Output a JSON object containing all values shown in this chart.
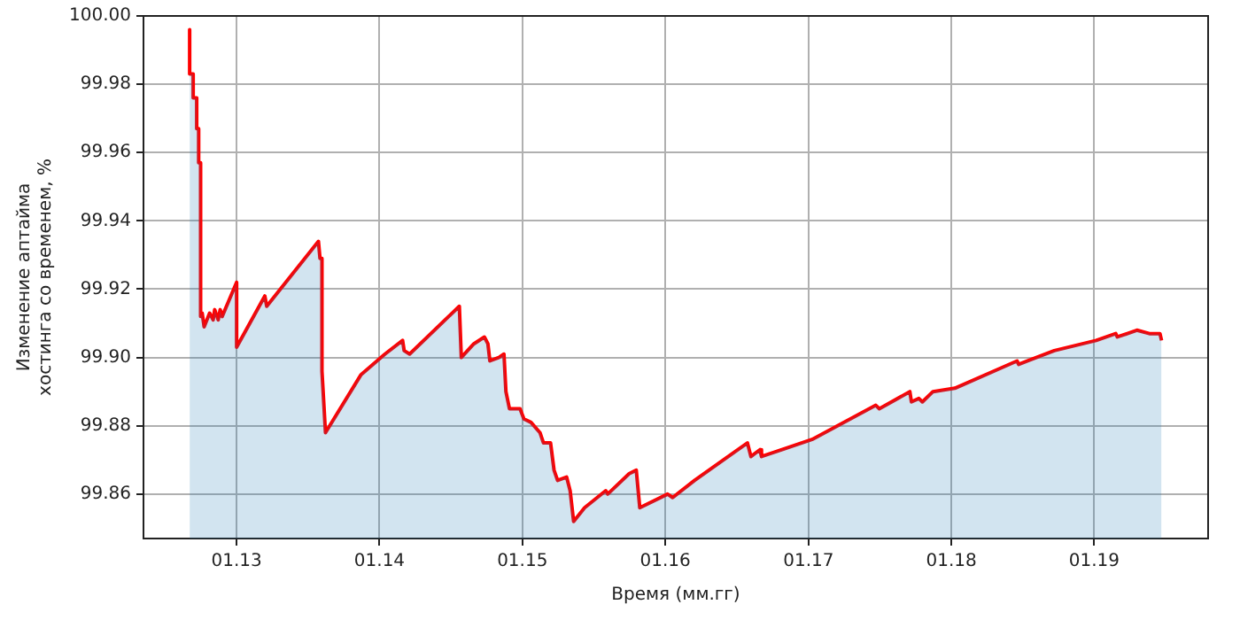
{
  "chart_data": {
    "type": "area",
    "xlabel": "Время (мм.гг)",
    "ylabel": "Изменение аптайма\nхостинга со временем, %",
    "x": [
      "2012-09-03",
      "2012-09-03",
      "2012-09-12",
      "2012-09-12",
      "2012-09-21",
      "2012-09-21",
      "2012-09-26",
      "2012-09-26",
      "2012-10-01",
      "2012-10-01",
      "2012-10-05",
      "2012-10-10",
      "2012-10-24",
      "2012-11-02",
      "2012-11-06",
      "2012-11-15",
      "2012-11-20",
      "2012-11-25",
      "2013-01-01",
      "2013-01-01",
      "2013-03-14",
      "2013-03-19",
      "2013-07-29",
      "2013-08-02",
      "2013-08-07",
      "2013-08-07",
      "2013-08-16",
      "2013-11-15",
      "2014-01-15",
      "2014-03-01",
      "2014-03-05",
      "2014-03-19",
      "2014-07-24",
      "2014-07-29",
      "2014-08-30",
      "2014-09-26",
      "2014-10-05",
      "2014-10-10",
      "2014-11-02",
      "2014-11-15",
      "2014-11-20",
      "2014-11-29",
      "2014-12-26",
      "2015-01-05",
      "2015-01-23",
      "2015-02-15",
      "2015-02-24",
      "2015-03-14",
      "2015-03-23",
      "2015-04-01",
      "2015-04-24",
      "2015-05-03",
      "2015-05-12",
      "2015-06-09",
      "2015-08-02",
      "2015-08-07",
      "2015-10-01",
      "2015-10-19",
      "2015-10-28",
      "2016-01-07",
      "2016-01-20",
      "2016-03-16",
      "2016-07-29",
      "2016-08-07",
      "2016-08-30",
      "2016-09-03",
      "2017-01-10",
      "2017-06-22",
      "2017-07-01",
      "2017-09-17",
      "2017-09-21",
      "2017-10-10",
      "2017-10-19",
      "2017-11-15",
      "2018-01-10",
      "2018-06-18",
      "2018-06-22",
      "2018-07-15",
      "2018-09-21",
      "2019-01-06",
      "2019-02-25",
      "2019-03-01",
      "2019-04-20",
      "2019-05-22",
      "2019-06-18",
      "2019-06-22"
    ],
    "series": [
      {
        "color": "#1f77b4",
        "values": [
          99.996,
          99.983,
          99.983,
          99.976,
          99.976,
          99.967,
          99.967,
          99.957,
          99.957,
          99.912,
          99.913,
          99.909,
          99.913,
          99.911,
          99.914,
          99.911,
          99.914,
          99.912,
          99.922,
          99.903,
          99.918,
          99.915,
          99.934,
          99.929,
          99.929,
          99.896,
          99.878,
          99.895,
          99.901,
          99.905,
          99.902,
          99.901,
          99.915,
          99.9,
          99.904,
          99.906,
          99.904,
          99.899,
          99.9,
          99.901,
          99.89,
          99.885,
          99.885,
          99.882,
          99.881,
          99.878,
          99.875,
          99.875,
          99.867,
          99.864,
          99.865,
          99.861,
          99.852,
          99.856,
          99.861,
          99.86,
          99.866,
          99.867,
          99.856,
          99.86,
          99.859,
          99.864,
          99.875,
          99.871,
          99.873,
          99.871,
          99.876,
          99.886,
          99.885,
          99.89,
          99.887,
          99.888,
          99.887,
          99.89,
          99.891,
          99.899,
          99.898,
          99.899,
          99.902,
          99.905,
          99.907,
          99.906,
          99.908,
          99.907,
          99.907,
          99.905
        ]
      },
      {
        "type": "line",
        "color": "#ff0000",
        "values": [
          99.996,
          99.983,
          99.983,
          99.976,
          99.976,
          99.967,
          99.967,
          99.957,
          99.957,
          99.912,
          99.913,
          99.909,
          99.913,
          99.911,
          99.914,
          99.911,
          99.914,
          99.912,
          99.922,
          99.903,
          99.918,
          99.915,
          99.934,
          99.929,
          99.929,
          99.896,
          99.878,
          99.895,
          99.901,
          99.905,
          99.902,
          99.901,
          99.915,
          99.9,
          99.904,
          99.906,
          99.904,
          99.899,
          99.9,
          99.901,
          99.89,
          99.885,
          99.885,
          99.882,
          99.881,
          99.878,
          99.875,
          99.875,
          99.867,
          99.864,
          99.865,
          99.861,
          99.852,
          99.856,
          99.861,
          99.86,
          99.866,
          99.867,
          99.856,
          99.86,
          99.859,
          99.864,
          99.875,
          99.871,
          99.873,
          99.871,
          99.876,
          99.886,
          99.885,
          99.89,
          99.887,
          99.888,
          99.887,
          99.89,
          99.891,
          99.899,
          99.898,
          99.899,
          99.902,
          99.905,
          99.907,
          99.906,
          99.908,
          99.907,
          99.907,
          99.905
        ]
      }
    ],
    "xlim": [
      "2012-05-08",
      "2019-10-19"
    ],
    "xticks": [
      {
        "value": "2013-01-01",
        "label": "01.13"
      },
      {
        "value": "2014-01-01",
        "label": "01.14"
      },
      {
        "value": "2015-01-01",
        "label": "01.15"
      },
      {
        "value": "2016-01-01",
        "label": "01.16"
      },
      {
        "value": "2017-01-01",
        "label": "01.17"
      },
      {
        "value": "2018-01-01",
        "label": "01.18"
      },
      {
        "value": "2019-01-01",
        "label": "01.19"
      }
    ],
    "ylim": [
      99.847,
      100
    ],
    "yticks": [
      {
        "value": 99.86,
        "label": "99.86"
      },
      {
        "value": 99.88,
        "label": "99.88"
      },
      {
        "value": 99.9,
        "label": "99.90"
      },
      {
        "value": 99.92,
        "label": "99.92"
      },
      {
        "value": 99.94,
        "label": "99.94"
      },
      {
        "value": 99.96,
        "label": "99.96"
      },
      {
        "value": 99.98,
        "label": "99.98"
      },
      {
        "value": 100,
        "label": "100.00"
      }
    ],
    "grid": true,
    "legend": false
  }
}
